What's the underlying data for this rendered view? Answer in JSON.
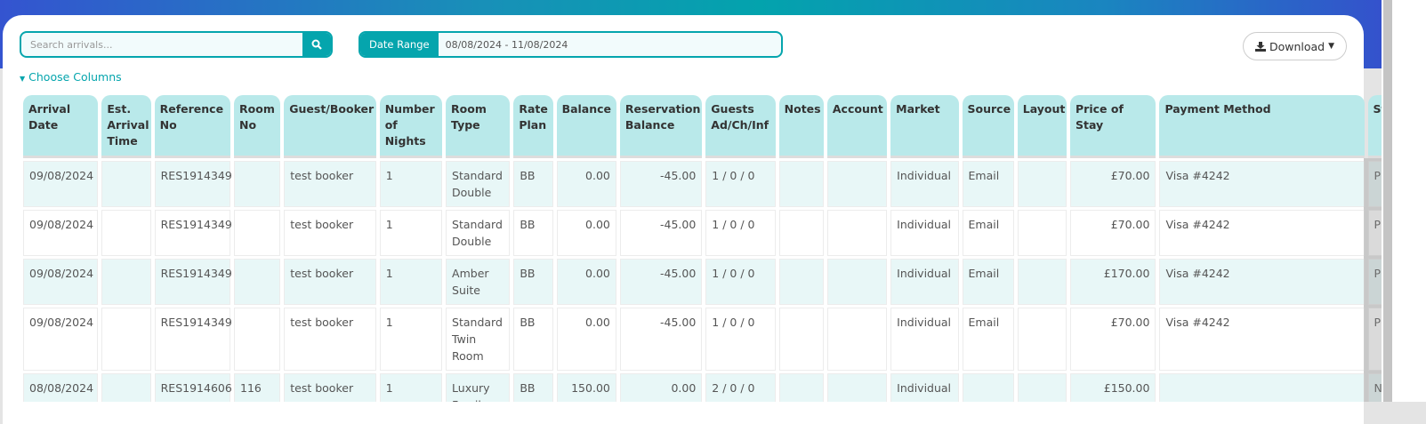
{
  "toolbar": {
    "search_placeholder": "Search arrivals...",
    "search_icon": "search-icon",
    "date_range_label": "Date Range",
    "date_range_value": "08/08/2024 - 11/08/2024",
    "download_label": "Download",
    "choose_columns": "Choose Columns"
  },
  "colors": {
    "accent": "#05a5ad",
    "header_bg": "#b9e9ea",
    "row_alt": "#e8f7f7"
  },
  "table": {
    "columns": [
      "Arrival Date",
      "Est. Arrival Time",
      "Reference No",
      "Room No",
      "Guest/Booker",
      "Number of Nights",
      "Room Type",
      "Rate Plan",
      "Balance",
      "Reservation Balance",
      "Guests Ad/Ch/Inf",
      "Notes",
      "Account",
      "Market",
      "Source",
      "Layout",
      "Price of Stay",
      "Payment Method",
      "Status"
    ],
    "rows": [
      [
        "09/08/2024",
        "",
        "RES1914349",
        "",
        "test booker",
        "1",
        "Standard Double",
        "BB",
        "0.00",
        "-45.00",
        "1 / 0 / 0",
        "",
        "",
        "Individual",
        "Email",
        "",
        "£70.00",
        "Visa #4242",
        "Provisional"
      ],
      [
        "09/08/2024",
        "",
        "RES1914349",
        "",
        "test booker",
        "1",
        "Standard Double",
        "BB",
        "0.00",
        "-45.00",
        "1 / 0 / 0",
        "",
        "",
        "Individual",
        "Email",
        "",
        "£70.00",
        "Visa #4242",
        "Provisional"
      ],
      [
        "09/08/2024",
        "",
        "RES1914349",
        "",
        "test booker",
        "1",
        "Amber Suite",
        "BB",
        "0.00",
        "-45.00",
        "1 / 0 / 0",
        "",
        "",
        "Individual",
        "Email",
        "",
        "£170.00",
        "Visa #4242",
        "Provisional"
      ],
      [
        "09/08/2024",
        "",
        "RES1914349",
        "",
        "test booker",
        "1",
        "Standard Twin Room",
        "BB",
        "0.00",
        "-45.00",
        "1 / 0 / 0",
        "",
        "",
        "Individual",
        "Email",
        "",
        "£70.00",
        "Visa #4242",
        "Provisional"
      ],
      [
        "08/08/2024",
        "",
        "RES1914606",
        "116",
        "test booker",
        "1",
        "Luxury Family",
        "BB",
        "150.00",
        "0.00",
        "2 / 0 / 0",
        "",
        "",
        "Individual",
        "",
        "",
        "£150.00",
        "",
        "NoShow"
      ]
    ]
  }
}
